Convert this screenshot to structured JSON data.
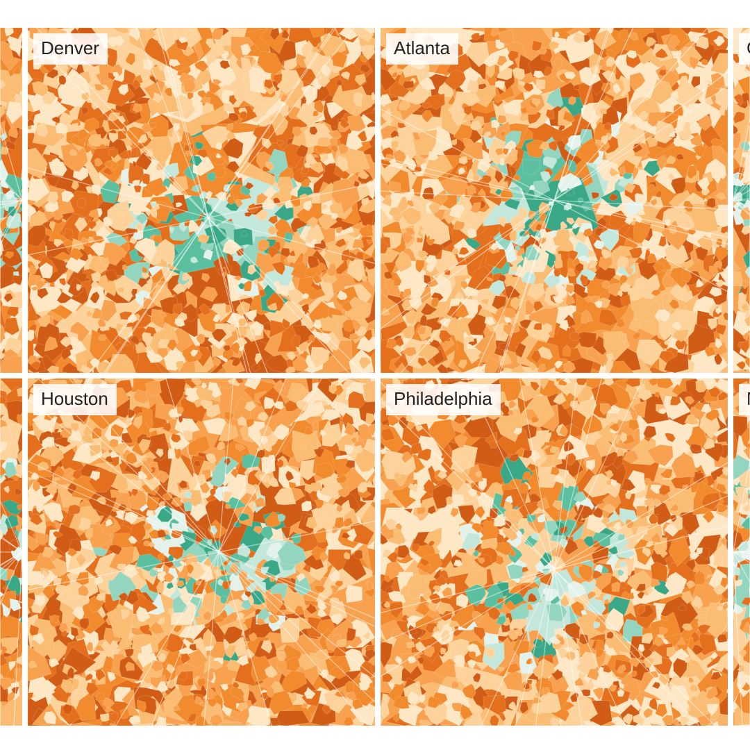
{
  "panels": [
    {
      "label": "",
      "partial": true,
      "seed": 11,
      "center": [
        1.0,
        0.5
      ]
    },
    {
      "label": "Denver",
      "seed": 23,
      "center": [
        0.52,
        0.55
      ]
    },
    {
      "label": "Atlanta",
      "seed": 37,
      "center": [
        0.5,
        0.5
      ]
    },
    {
      "label": "C",
      "partial": true,
      "seed": 41,
      "center": [
        0.0,
        0.5
      ]
    },
    {
      "label": "",
      "partial": true,
      "seed": 53,
      "center": [
        1.0,
        0.5
      ]
    },
    {
      "label": "Houston",
      "seed": 67,
      "center": [
        0.55,
        0.5
      ]
    },
    {
      "label": "Philadelphia",
      "seed": 79,
      "center": [
        0.5,
        0.55
      ]
    },
    {
      "label": "N",
      "partial": true,
      "seed": 83,
      "center": [
        0.0,
        0.5
      ]
    }
  ],
  "colors": {
    "orange_scale": [
      "#fde7c4",
      "#fdd29b",
      "#fbbd73",
      "#f8a250",
      "#f28a2e",
      "#e46f1c",
      "#d05c16"
    ],
    "teal_scale": [
      "#e4f2ec",
      "#c3e7da",
      "#93d5bf",
      "#5cbf9f",
      "#3aa886"
    ],
    "water": "#ffffff",
    "roads": "#ffffff"
  }
}
